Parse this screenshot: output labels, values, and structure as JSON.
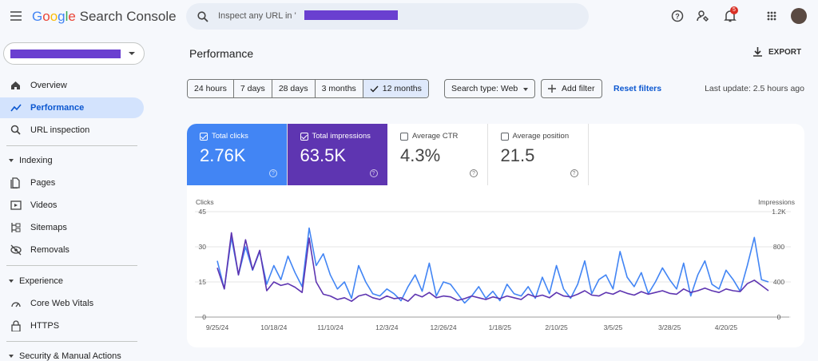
{
  "header": {
    "logo_brand": "Google",
    "logo_product": "Search Console",
    "search_placeholder": "Inspect any URL in '",
    "notification_count": "5"
  },
  "sidebar": {
    "active_index": 1,
    "top": [
      "Overview",
      "Performance",
      "URL inspection"
    ],
    "indexing": {
      "title": "Indexing",
      "items": [
        "Pages",
        "Videos",
        "Sitemaps",
        "Removals"
      ]
    },
    "experience": {
      "title": "Experience",
      "items": [
        "Core Web Vitals",
        "HTTPS"
      ]
    },
    "security": {
      "title": "Security & Manual Actions"
    }
  },
  "main": {
    "title": "Performance",
    "export": "EXPORT",
    "date_ranges": [
      "24 hours",
      "7 days",
      "28 days",
      "3 months",
      "12 months"
    ],
    "selected_range": 4,
    "search_type": "Search type: Web",
    "add_filter": "Add filter",
    "reset_filters": "Reset filters",
    "last_update": "Last update: 2.5 hours ago"
  },
  "metrics": [
    {
      "label": "Total clicks",
      "value": "2.76K",
      "checked": true,
      "color": "#4285f4"
    },
    {
      "label": "Total impressions",
      "value": "63.5K",
      "checked": true,
      "color": "#5e35b1"
    },
    {
      "label": "Average CTR",
      "value": "4.3%",
      "checked": false,
      "color": "#ffffff"
    },
    {
      "label": "Average position",
      "value": "21.5",
      "checked": false,
      "color": "#ffffff"
    }
  ],
  "chart_data": {
    "type": "line",
    "categories": [
      "9/25/24",
      null,
      null,
      null,
      null,
      null,
      null,
      null,
      "10/18/24",
      null,
      null,
      null,
      null,
      null,
      null,
      null,
      "11/10/24",
      null,
      null,
      null,
      null,
      null,
      null,
      null,
      "12/3/24",
      null,
      null,
      null,
      null,
      null,
      null,
      null,
      "12/26/24",
      null,
      null,
      null,
      null,
      null,
      null,
      null,
      "1/18/25",
      null,
      null,
      null,
      null,
      null,
      null,
      null,
      "2/10/25",
      null,
      null,
      null,
      null,
      null,
      null,
      null,
      "3/5/25",
      null,
      null,
      null,
      null,
      null,
      null,
      null,
      "3/28/25",
      null,
      null,
      null,
      null,
      null,
      null,
      null,
      "4/20/25",
      null,
      null,
      null,
      null,
      null,
      null
    ],
    "series": [
      {
        "name": "Clicks",
        "color": "#4285f4",
        "values": [
          24,
          12,
          34,
          18,
          30,
          20,
          28,
          14,
          22,
          16,
          26,
          19,
          13,
          38,
          22,
          27,
          18,
          12,
          15,
          8,
          22,
          15,
          10,
          9,
          12,
          10,
          7,
          13,
          18,
          11,
          23,
          9,
          15,
          14,
          10,
          6,
          9,
          13,
          8,
          11,
          7,
          14,
          10,
          9,
          13,
          8,
          17,
          10,
          22,
          12,
          8,
          14,
          24,
          10,
          16,
          18,
          12,
          28,
          17,
          13,
          19,
          10,
          15,
          21,
          16,
          12,
          23,
          9,
          18,
          24,
          14,
          12,
          20,
          16,
          11,
          22,
          34,
          16,
          15
        ]
      },
      {
        "name": "Impressions",
        "color": "#5e35b1",
        "axis": "y2",
        "values": [
          560,
          320,
          960,
          480,
          880,
          540,
          760,
          300,
          400,
          360,
          380,
          340,
          280,
          900,
          400,
          260,
          240,
          200,
          220,
          180,
          240,
          260,
          220,
          200,
          240,
          210,
          220,
          180,
          260,
          230,
          280,
          220,
          240,
          230,
          190,
          210,
          240,
          220,
          200,
          230,
          210,
          240,
          220,
          200,
          260,
          230,
          250,
          220,
          280,
          240,
          230,
          260,
          300,
          250,
          240,
          280,
          260,
          300,
          270,
          250,
          290,
          260,
          280,
          300,
          270,
          260,
          320,
          280,
          300,
          330,
          300,
          280,
          320,
          300,
          290,
          380,
          420,
          360,
          300
        ]
      }
    ],
    "ylim": [
      0,
      45
    ],
    "yticks": [
      0,
      15,
      30,
      45
    ],
    "y2lim": [
      0,
      1200
    ],
    "y2ticks": [
      0,
      400,
      800,
      {
        "value": 1200,
        "label": "1.2K"
      }
    ],
    "grid": true
  }
}
